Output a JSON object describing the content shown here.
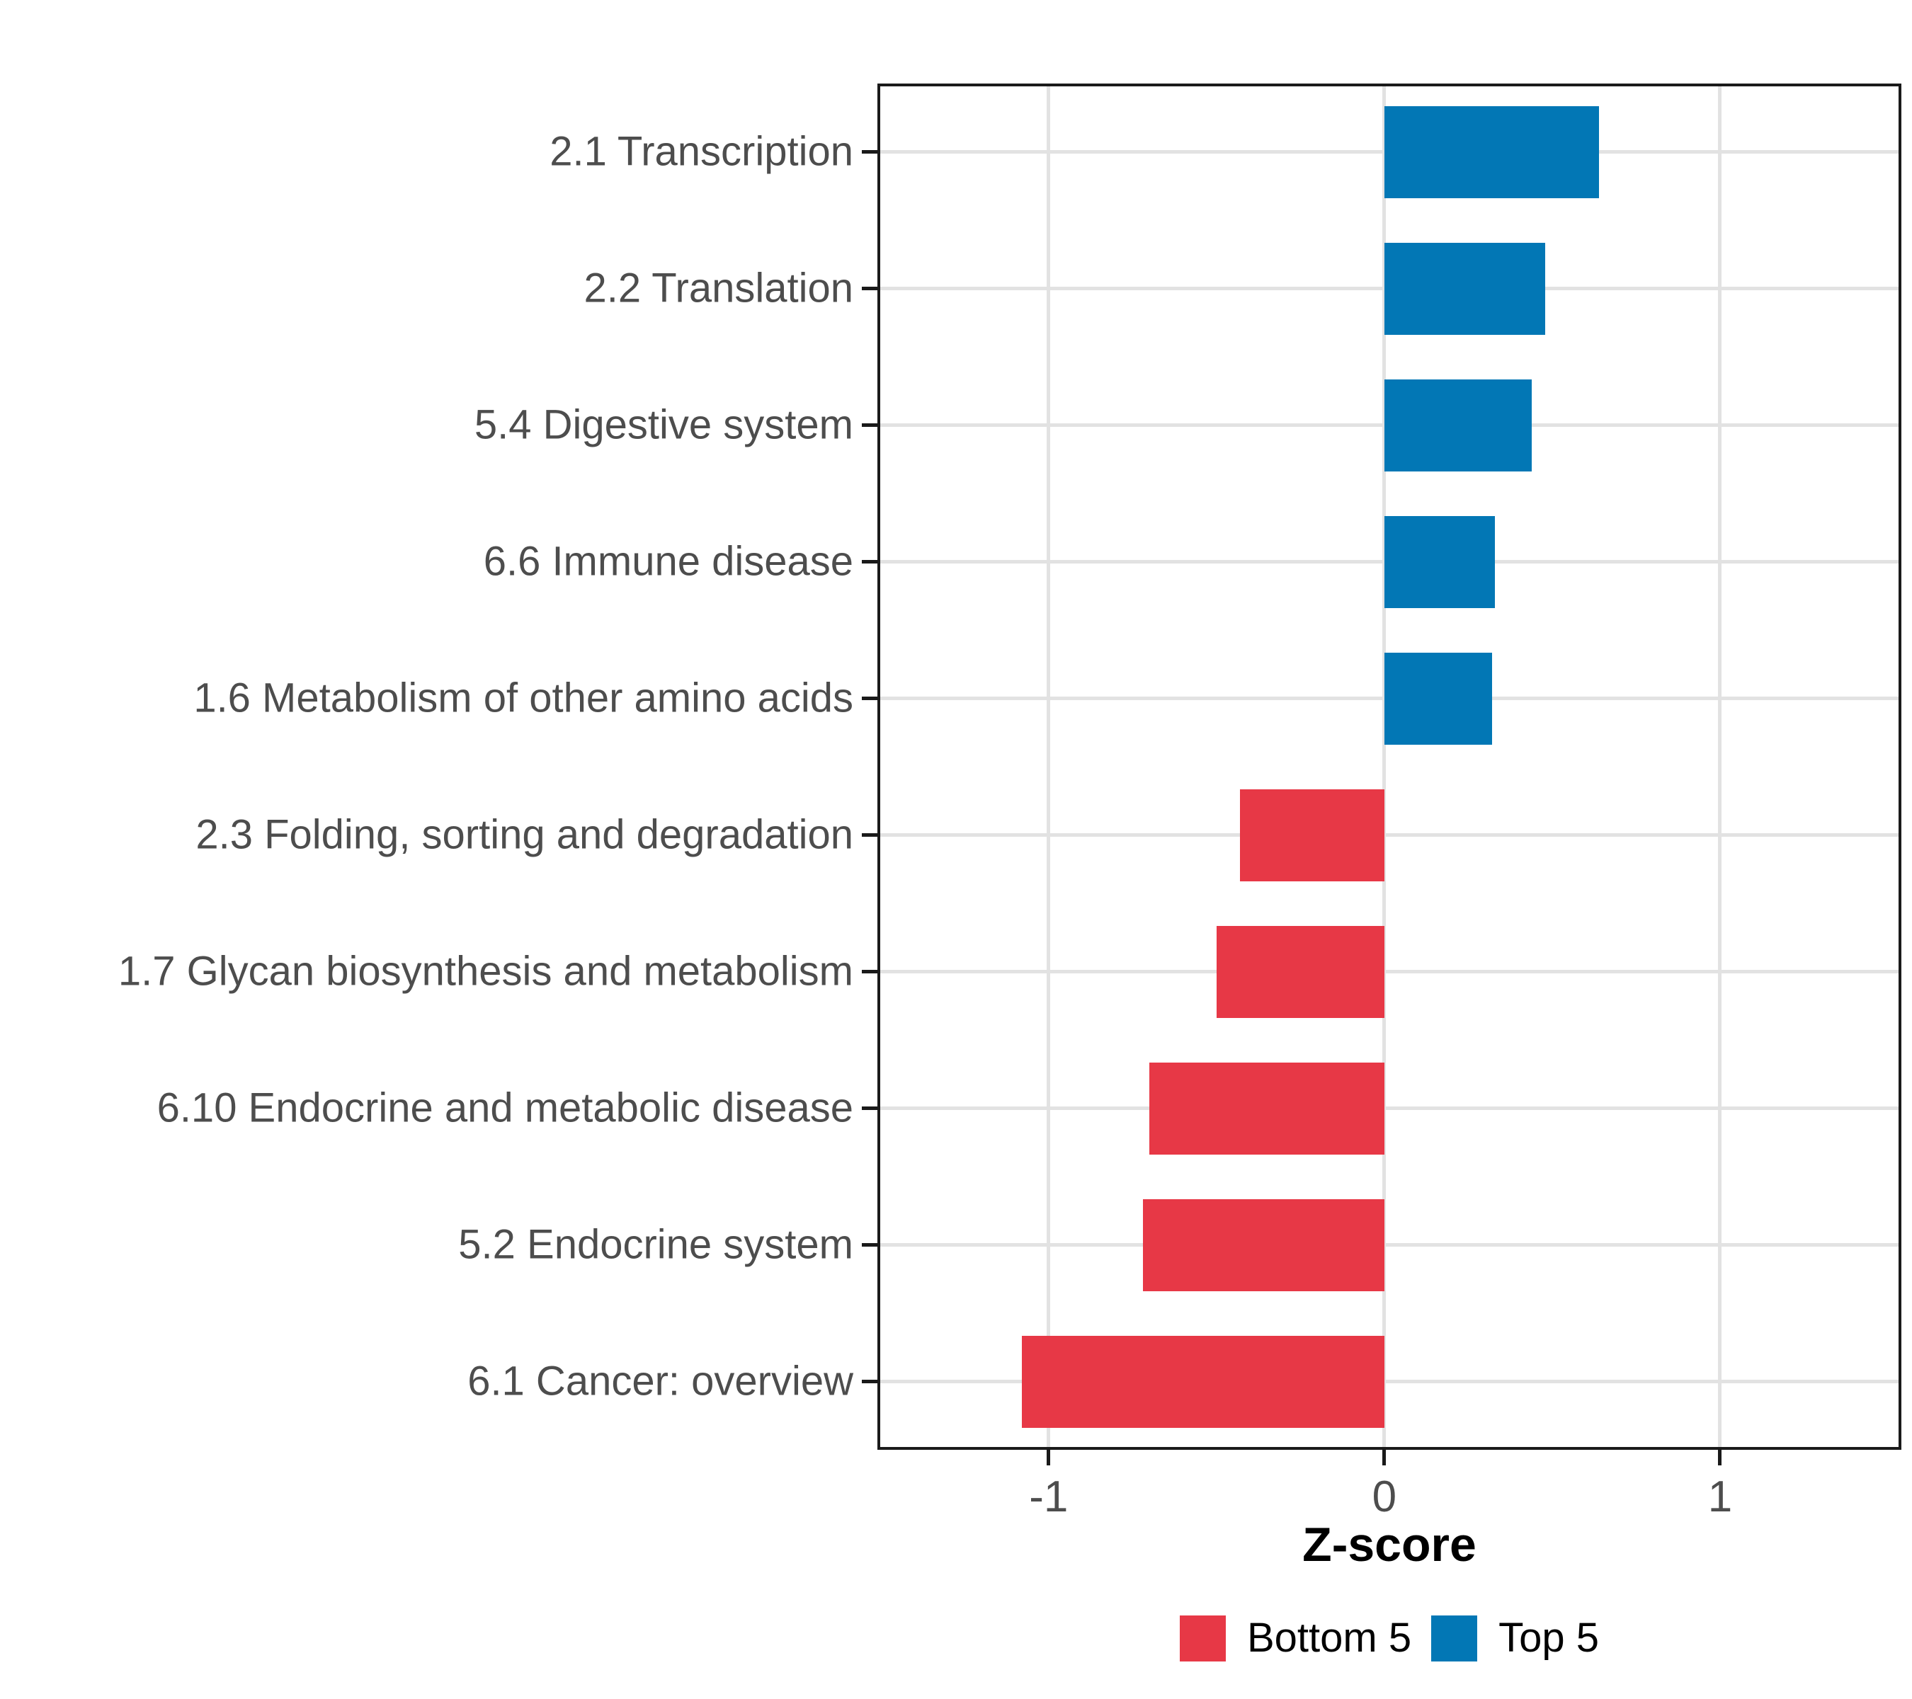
{
  "chart_data": {
    "type": "bar",
    "orientation": "horizontal",
    "xlabel": "Z-score",
    "ylabel": "",
    "xlim": [
      -1.51,
      1.54
    ],
    "xticks": [
      -1,
      0,
      1
    ],
    "grid": "major-only",
    "legend_position": "bottom",
    "categories": [
      "2.1 Transcription",
      "2.2 Translation",
      "5.4 Digestive system",
      "6.6 Immune disease",
      "1.6 Metabolism of other amino acids",
      "2.3 Folding, sorting and degradation",
      "1.7 Glycan biosynthesis and metabolism",
      "6.10 Endocrine and metabolic disease",
      "5.2 Endocrine system",
      "6.1 Cancer: overview"
    ],
    "values": [
      0.64,
      0.48,
      0.44,
      0.33,
      0.32,
      -0.43,
      -0.5,
      -0.7,
      -0.72,
      -1.08
    ],
    "groups": [
      "Top 5",
      "Top 5",
      "Top 5",
      "Top 5",
      "Top 5",
      "Bottom 5",
      "Bottom 5",
      "Bottom 5",
      "Bottom 5",
      "Bottom 5"
    ],
    "colors": {
      "Bottom 5": "#E73846",
      "Top 5": "#0277B5"
    },
    "legend": [
      {
        "label": "Bottom 5",
        "color": "#E73846"
      },
      {
        "label": "Top 5",
        "color": "#0277B5"
      }
    ]
  }
}
